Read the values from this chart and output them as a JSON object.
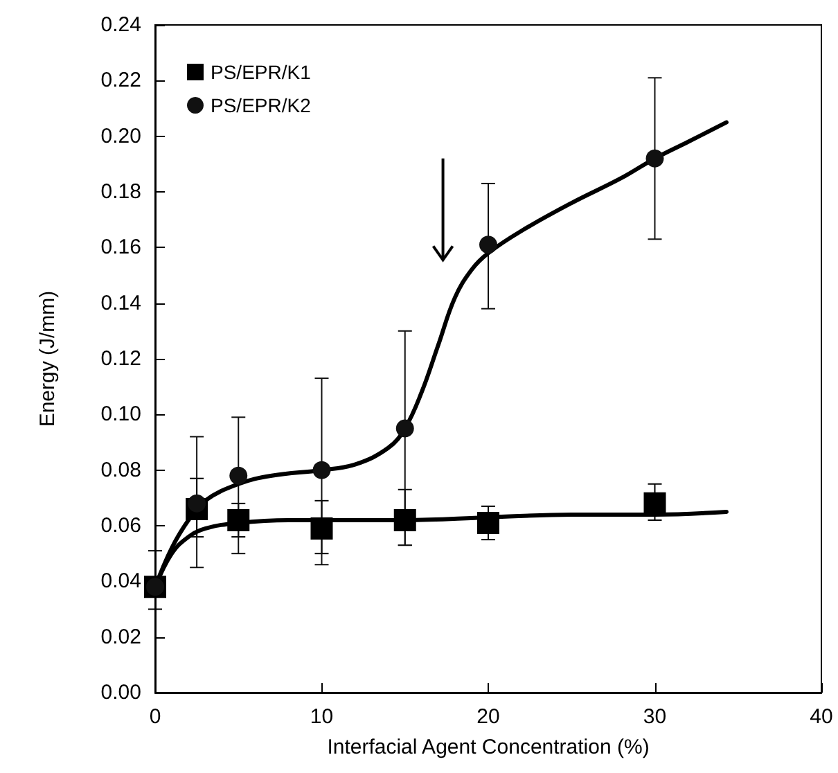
{
  "chart_data": {
    "type": "scatter",
    "xlabel": "Interfacial Agent Concentration (%)",
    "ylabel": "Energy (J/mm)",
    "xlim": [
      0,
      40
    ],
    "xticks": [
      0,
      10,
      20,
      30,
      40
    ],
    "ylim": [
      0,
      0.24
    ],
    "yticks": [
      {
        "value": 0,
        "label": "0.00"
      },
      {
        "value": 0.02,
        "label": "0.02"
      },
      {
        "value": 0.04,
        "label": "0.04"
      },
      {
        "value": 0.06,
        "label": "0.06"
      },
      {
        "value": 0.08,
        "label": "0.08"
      },
      {
        "value": 0.1,
        "label": "0.10"
      },
      {
        "value": 0.12,
        "label": "0.12"
      },
      {
        "value": 0.14,
        "label": "0.14"
      },
      {
        "value": 0.16,
        "label": "0.16"
      },
      {
        "value": 0.18,
        "label": "0.18"
      },
      {
        "value": 0.2,
        "label": "0.20"
      },
      {
        "value": 0.22,
        "label": "0.22"
      },
      {
        "value": 0.24,
        "label": "0.24"
      }
    ],
    "grid": false,
    "legend": "top left",
    "series": [
      {
        "name": "PS/EPR/K1",
        "marker": "square",
        "color": "#000000",
        "x": [
          0,
          2.5,
          5,
          10,
          15,
          20,
          30
        ],
        "values": [
          0.038,
          0.066,
          0.062,
          0.059,
          0.062,
          0.061,
          0.068
        ],
        "errors": [
          [
            0.03,
            0.051
          ],
          [
            0.056,
            0.077
          ],
          [
            0.056,
            0.068
          ],
          [
            0.05,
            0.069
          ],
          [
            0.053,
            0.073
          ],
          [
            0.055,
            0.067
          ],
          [
            0.062,
            0.075
          ]
        ]
      },
      {
        "name": "PS/EPR/K2",
        "marker": "circle",
        "color": "#111111",
        "x": [
          0,
          2.5,
          5,
          10,
          15,
          20,
          30
        ],
        "values": [
          0.038,
          0.068,
          0.078,
          0.08,
          0.095,
          0.161,
          0.192
        ],
        "errors": [
          null,
          [
            0.045,
            0.092
          ],
          [
            0.05,
            0.099
          ],
          [
            0.046,
            0.113
          ],
          [
            0.053,
            0.13
          ],
          [
            0.138,
            0.183
          ],
          [
            0.163,
            0.221
          ]
        ]
      },
      {
        "type": "line",
        "marker": "none",
        "color": "#000000",
        "x": [
          0,
          1,
          2,
          3,
          5,
          8,
          15,
          20,
          25,
          30,
          34.3
        ],
        "values": [
          0.038,
          0.05,
          0.056,
          0.059,
          0.061,
          0.062,
          0.062,
          0.063,
          0.064,
          0.064,
          0.065
        ]
      },
      {
        "type": "line",
        "marker": "none",
        "color": "#000000",
        "x": [
          0,
          1,
          2,
          3,
          5,
          7,
          10,
          12,
          14,
          15,
          16,
          17,
          18,
          19,
          20,
          22,
          25,
          28,
          30,
          32,
          34.3
        ],
        "values": [
          0.038,
          0.052,
          0.062,
          0.069,
          0.075,
          0.078,
          0.08,
          0.082,
          0.088,
          0.095,
          0.108,
          0.125,
          0.142,
          0.152,
          0.158,
          0.166,
          0.176,
          0.185,
          0.192,
          0.198,
          0.205
        ]
      }
    ]
  }
}
